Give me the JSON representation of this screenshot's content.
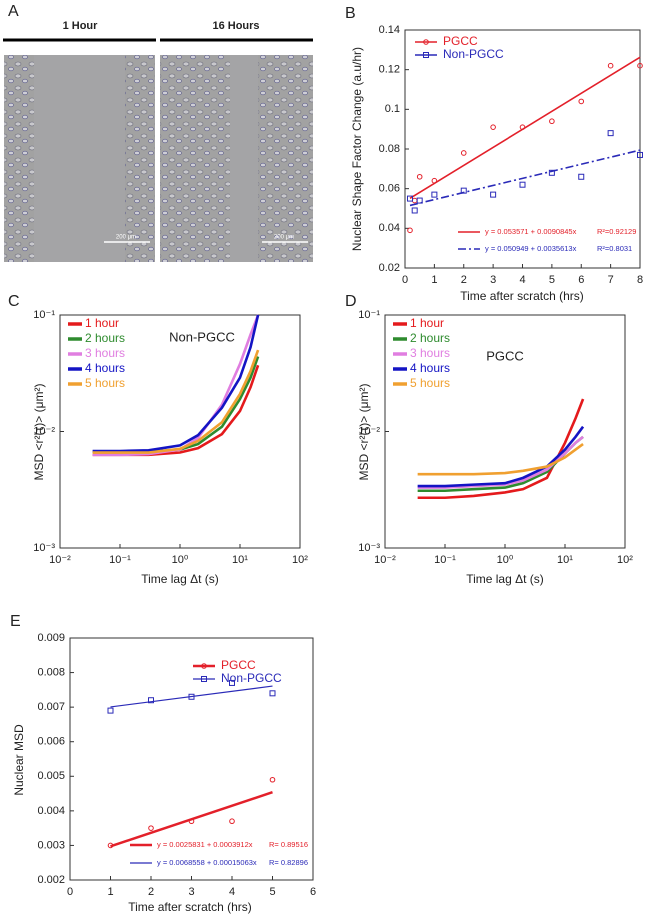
{
  "panel_a": {
    "label": "A",
    "images": [
      {
        "title": "1 Hour",
        "scale_bar": "200 μm"
      },
      {
        "title": "16 Hours",
        "scale_bar": "200 μm"
      }
    ]
  },
  "chart_data": [
    {
      "type": "scatter",
      "label": "B",
      "xlabel": "Time after scratch (hrs)",
      "ylabel": "Nuclear Shape Factor Change (a.u/hr)",
      "xlim": [
        0,
        8
      ],
      "xticks": [
        0,
        1,
        2,
        3,
        4,
        5,
        6,
        7,
        8
      ],
      "ylim": [
        0.02,
        0.14
      ],
      "yticks": [
        0.02,
        0.04,
        0.06,
        0.08,
        0.1,
        0.12,
        0.14
      ],
      "x": [
        0.17,
        0.33,
        0.5,
        1,
        2,
        3,
        4,
        5,
        6,
        7,
        8
      ],
      "series": [
        {
          "name": "PGCC",
          "color": "#e3202a",
          "marker": "circle",
          "dash": false,
          "values": [
            0.039,
            0.054,
            0.066,
            0.064,
            0.078,
            0.091,
            0.091,
            0.094,
            0.104,
            0.122,
            0.122
          ],
          "fit": {
            "intercept": 0.053571,
            "slope": 0.0090845,
            "equation": "y = 0.053571 + 0.0090845x",
            "r": "R²=0.92129"
          }
        },
        {
          "name": "Non-PGCC",
          "color": "#2a2ab8",
          "marker": "square",
          "dash": true,
          "values": [
            0.055,
            0.049,
            0.054,
            0.057,
            0.059,
            0.057,
            0.062,
            0.068,
            0.066,
            0.088,
            0.077
          ],
          "fit": {
            "intercept": 0.050949,
            "slope": 0.0035613,
            "equation": "y = 0.050949 + 0.0035613x",
            "r": "R²=0.8031"
          }
        }
      ]
    },
    {
      "type": "line",
      "label": "C",
      "annotation": "Non-PGCC",
      "xlabel": "Time lag Δt (s)",
      "ylabel": "MSD <r²(τ)> (μm²)",
      "xscale": "log",
      "yscale": "log",
      "xlim": [
        0.01,
        100
      ],
      "xticks": [
        {
          "value": 0.01,
          "label": "10⁻²"
        },
        {
          "value": 0.1,
          "label": "10⁻¹"
        },
        {
          "value": 1,
          "label": "10⁰"
        },
        {
          "value": 10,
          "label": "10¹"
        },
        {
          "value": 100,
          "label": "10²"
        }
      ],
      "ylim": [
        0.001,
        0.1
      ],
      "yticks": [
        {
          "value": 0.001,
          "label": "10⁻³"
        },
        {
          "value": 0.01,
          "label": "10⁻²"
        },
        {
          "value": 0.1,
          "label": "10⁻¹"
        }
      ],
      "x": [
        0.035,
        0.1,
        0.3,
        1,
        2,
        5,
        10,
        15,
        20
      ],
      "series": [
        {
          "name": "1 hour",
          "color": "#e41a1c",
          "values": [
            0.0063,
            0.0063,
            0.0063,
            0.0066,
            0.0072,
            0.0095,
            0.015,
            0.024,
            0.037
          ]
        },
        {
          "name": "2 hours",
          "color": "#2e8b2e",
          "values": [
            0.0067,
            0.0067,
            0.0067,
            0.007,
            0.0078,
            0.011,
            0.019,
            0.029,
            0.044
          ]
        },
        {
          "name": "3 hours",
          "color": "#e07ee0",
          "values": [
            0.0063,
            0.0063,
            0.0064,
            0.007,
            0.0088,
            0.017,
            0.038,
            0.068,
            0.1
          ]
        },
        {
          "name": "4 hours",
          "color": "#1414c4",
          "values": [
            0.0068,
            0.0068,
            0.0069,
            0.0076,
            0.0093,
            0.016,
            0.029,
            0.053,
            0.1
          ]
        },
        {
          "name": "5 hours",
          "color": "#f0a030",
          "values": [
            0.0066,
            0.0066,
            0.0066,
            0.0071,
            0.0083,
            0.012,
            0.021,
            0.033,
            0.05
          ]
        }
      ]
    },
    {
      "type": "line",
      "label": "D",
      "annotation": "PGCC",
      "xlabel": "Time lag Δt (s)",
      "ylabel": "MSD <r²(τ)> (μm²)",
      "xscale": "log",
      "yscale": "log",
      "xlim": [
        0.01,
        100
      ],
      "xticks": [
        {
          "value": 0.01,
          "label": "10⁻²"
        },
        {
          "value": 0.1,
          "label": "10⁻¹"
        },
        {
          "value": 1,
          "label": "10⁰"
        },
        {
          "value": 10,
          "label": "10¹"
        },
        {
          "value": 100,
          "label": "10²"
        }
      ],
      "ylim": [
        0.001,
        0.1
      ],
      "yticks": [
        {
          "value": 0.001,
          "label": "10⁻³"
        },
        {
          "value": 0.01,
          "label": "10⁻²"
        },
        {
          "value": 0.1,
          "label": "10⁻¹"
        }
      ],
      "x": [
        0.035,
        0.1,
        0.3,
        1,
        2,
        5,
        10,
        15,
        20
      ],
      "series": [
        {
          "name": "1 hour",
          "color": "#e41a1c",
          "values": [
            0.0027,
            0.0027,
            0.0028,
            0.003,
            0.0032,
            0.004,
            0.008,
            0.013,
            0.019
          ]
        },
        {
          "name": "2 hours",
          "color": "#2e8b2e",
          "values": [
            0.0031,
            0.0031,
            0.0032,
            0.0033,
            0.0036,
            0.0045,
            0.0065,
            0.008,
            0.009
          ]
        },
        {
          "name": "3 hours",
          "color": "#e07ee0",
          "values": [
            0.0033,
            0.0033,
            0.0034,
            0.0035,
            0.0038,
            0.0047,
            0.0065,
            0.008,
            0.009
          ]
        },
        {
          "name": "4 hours",
          "color": "#1414c4",
          "values": [
            0.0034,
            0.0034,
            0.0035,
            0.0036,
            0.004,
            0.005,
            0.007,
            0.009,
            0.011
          ]
        },
        {
          "name": "5 hours",
          "color": "#f0a030",
          "values": [
            0.0043,
            0.0043,
            0.0043,
            0.0044,
            0.0046,
            0.005,
            0.006,
            0.007,
            0.0078
          ]
        }
      ]
    },
    {
      "type": "scatter",
      "label": "E",
      "xlabel": "Time after scratch (hrs)",
      "ylabel": "Nuclear MSD",
      "xlim": [
        0,
        6
      ],
      "xticks": [
        0,
        1,
        2,
        3,
        4,
        5,
        6
      ],
      "ylim": [
        0.002,
        0.009
      ],
      "yticks": [
        0.002,
        0.003,
        0.004,
        0.005,
        0.006,
        0.007,
        0.008,
        0.009
      ],
      "x": [
        1,
        2,
        3,
        4,
        5
      ],
      "series": [
        {
          "name": "PGCC",
          "color": "#e3202a",
          "marker": "circle",
          "dash": false,
          "width": 2.5,
          "values": [
            0.003,
            0.0035,
            0.0037,
            0.0037,
            0.0049
          ],
          "fit": {
            "intercept": 0.0025831,
            "slope": 0.0003912,
            "equation": "y = 0.0025831 + 0.0003912x",
            "r": "R= 0.89516"
          }
        },
        {
          "name": "Non-PGCC",
          "color": "#2a2ab8",
          "marker": "square",
          "dash": false,
          "width": 1.2,
          "values": [
            0.0069,
            0.0072,
            0.0073,
            0.0077,
            0.0074
          ],
          "fit": {
            "intercept": 0.0068558,
            "slope": 0.00015063,
            "equation": "y = 0.0068558 + 0.00015063x",
            "r": "R= 0.82896"
          }
        }
      ]
    }
  ]
}
